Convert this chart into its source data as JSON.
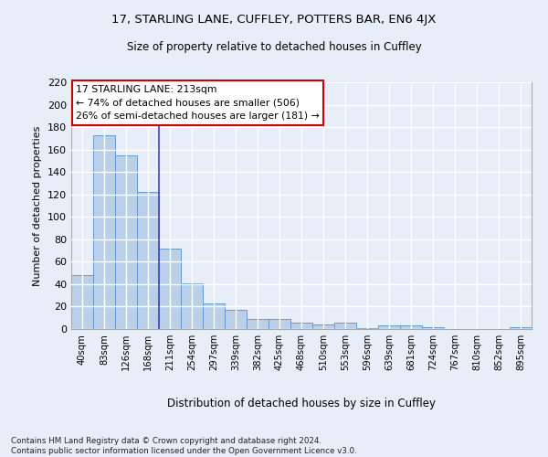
{
  "title_line1": "17, STARLING LANE, CUFFLEY, POTTERS BAR, EN6 4JX",
  "title_line2": "Size of property relative to detached houses in Cuffley",
  "xlabel": "Distribution of detached houses by size in Cuffley",
  "ylabel": "Number of detached properties",
  "categories": [
    "40sqm",
    "83sqm",
    "126sqm",
    "168sqm",
    "211sqm",
    "254sqm",
    "297sqm",
    "339sqm",
    "382sqm",
    "425sqm",
    "468sqm",
    "510sqm",
    "553sqm",
    "596sqm",
    "639sqm",
    "681sqm",
    "724sqm",
    "767sqm",
    "810sqm",
    "852sqm",
    "895sqm"
  ],
  "values": [
    48,
    173,
    155,
    122,
    72,
    41,
    23,
    17,
    9,
    9,
    6,
    4,
    6,
    1,
    3,
    3,
    2,
    0,
    0,
    0,
    2
  ],
  "bar_color": "#bad0e8",
  "bar_edge_color": "#6699cc",
  "marker_label": "17 STARLING LANE: 213sqm\n← 74% of detached houses are smaller (506)\n26% of semi-detached houses are larger (181) →",
  "annotation_box_color": "#ffffff",
  "annotation_box_edge_color": "#cc0000",
  "vline_x_index": 4,
  "vline_color": "#4444aa",
  "ylim": [
    0,
    220
  ],
  "yticks": [
    0,
    20,
    40,
    60,
    80,
    100,
    120,
    140,
    160,
    180,
    200,
    220
  ],
  "background_color": "#e8eef8",
  "grid_color": "#ffffff",
  "footer": "Contains HM Land Registry data © Crown copyright and database right 2024.\nContains public sector information licensed under the Open Government Licence v3.0."
}
